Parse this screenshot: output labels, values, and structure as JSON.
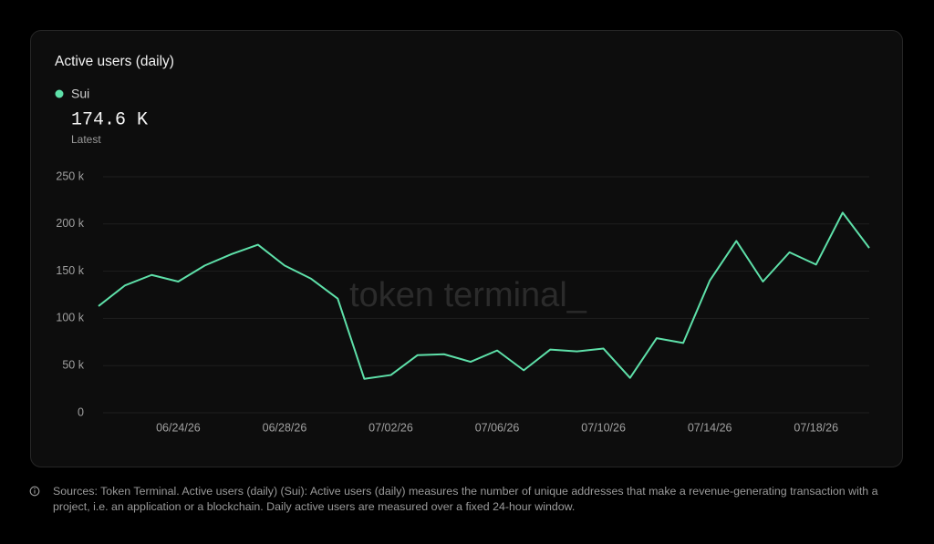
{
  "chart_data": {
    "type": "line",
    "title": "Active users (daily)",
    "latest": {
      "value": 174600,
      "label": "174.6 K"
    },
    "latest_caption": "Latest",
    "x": [
      "06/21/26",
      "06/22/26",
      "06/23/26",
      "06/24/26",
      "06/25/26",
      "06/26/26",
      "06/27/26",
      "06/28/26",
      "06/29/26",
      "06/30/26",
      "07/01/26",
      "07/02/26",
      "07/03/26",
      "07/04/26",
      "07/05/26",
      "07/06/26",
      "07/07/26",
      "07/08/26",
      "07/09/26",
      "07/10/26",
      "07/11/26",
      "07/12/26",
      "07/13/26",
      "07/14/26",
      "07/15/26",
      "07/16/26",
      "07/17/26",
      "07/18/26",
      "07/19/26",
      "07/20/26"
    ],
    "series": [
      {
        "name": "Sui",
        "color": "#5ee0a9",
        "values": [
          113000,
          135000,
          146000,
          139000,
          156000,
          168000,
          178000,
          156000,
          142000,
          121000,
          36000,
          40000,
          61000,
          62000,
          54000,
          66000,
          45000,
          67000,
          65000,
          68000,
          37000,
          79000,
          74000,
          140000,
          182000,
          139000,
          170000,
          157000,
          212000,
          174600
        ]
      }
    ],
    "xticks": [
      "06/24/26",
      "06/28/26",
      "07/02/26",
      "07/06/26",
      "07/10/26",
      "07/14/26",
      "07/18/26"
    ],
    "ylim": [
      0,
      250000
    ],
    "yticks": [
      {
        "value": 0,
        "label": "0"
      },
      {
        "value": 50000,
        "label": "50 k"
      },
      {
        "value": 100000,
        "label": "100 k"
      },
      {
        "value": 150000,
        "label": "150 k"
      },
      {
        "value": 200000,
        "label": "200 k"
      },
      {
        "value": 250000,
        "label": "250 k"
      }
    ],
    "grid": true
  },
  "watermark": "token terminal_",
  "footnote": "Sources: Token Terminal. Active users (daily) (Sui): Active users (daily) measures the number of unique addresses that make a revenue-generating transaction with a project, i.e. an application or a blockchain. Daily active users are measured over a fixed 24-hour window."
}
